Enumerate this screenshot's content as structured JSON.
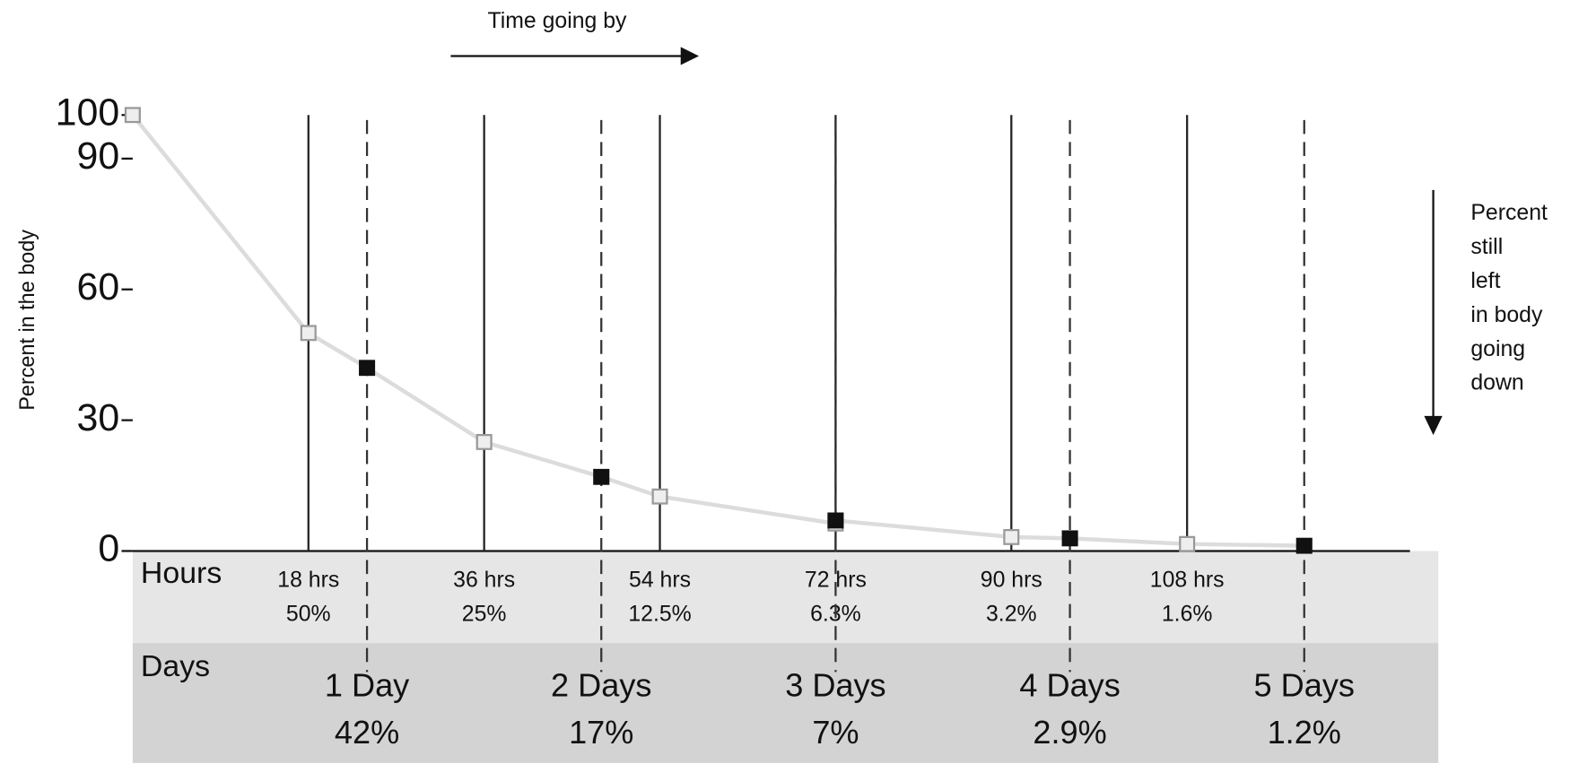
{
  "chart_data": {
    "type": "line",
    "annotation_top": "Time going by",
    "annotation_side": [
      "Percent",
      "still",
      "left",
      "in body",
      "going",
      "down"
    ],
    "ylabel": "Percent in the body",
    "xlim": [
      0,
      130
    ],
    "ylim": [
      0,
      100
    ],
    "yticks": [
      0,
      30,
      60,
      90,
      100
    ],
    "line_color": "#dcdcdc",
    "series": [
      {
        "name": "Hours",
        "marker": "hollow",
        "color": "#999999",
        "x": [
          0,
          18,
          36,
          54,
          72,
          90,
          108
        ],
        "values": [
          100,
          50,
          25,
          12.5,
          6.3,
          3.2,
          1.6
        ],
        "x_labels": [
          null,
          "18 hrs",
          "36 hrs",
          "54 hrs",
          "72 hrs",
          "90 hrs",
          "108 hrs"
        ],
        "value_labels": [
          null,
          "50%",
          "25%",
          "12.5%",
          "6.3%",
          "3.2%",
          "1.6%"
        ]
      },
      {
        "name": "Days",
        "marker": "filled",
        "color": "#111111",
        "x": [
          24,
          48,
          72,
          96,
          120
        ],
        "values": [
          42,
          17,
          7,
          2.9,
          1.2
        ],
        "x_labels": [
          "1 Day",
          "2 Days",
          "3 Days",
          "4 Days",
          "5 Days"
        ],
        "value_labels": [
          "42%",
          "17%",
          "7%",
          "2.9%",
          "1.2%"
        ]
      }
    ]
  }
}
